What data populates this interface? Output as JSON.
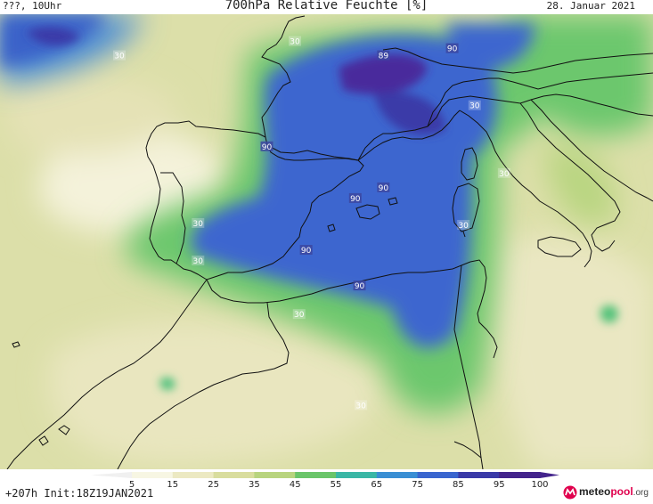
{
  "header": {
    "left": "???, 10Uhr",
    "title": "700hPa Relative Feuchte [%]",
    "date": "28. Januar 2021"
  },
  "map": {
    "variable": "relative humidity 700hPa",
    "contour_labels": [
      {
        "text": "30",
        "lon": -12.5,
        "lat": 46.2
      },
      {
        "text": "30",
        "lon": 0.0,
        "lat": 47.0
      },
      {
        "text": "89",
        "lon": 6.3,
        "lat": 46.2
      },
      {
        "text": "90",
        "lon": 11.2,
        "lat": 46.6
      },
      {
        "text": "30",
        "lon": 12.8,
        "lat": 43.4
      },
      {
        "text": "90",
        "lon": -2.0,
        "lat": 41.1
      },
      {
        "text": "30",
        "lon": 14.9,
        "lat": 39.6
      },
      {
        "text": "90",
        "lon": 6.3,
        "lat": 38.8
      },
      {
        "text": "90",
        "lon": 4.3,
        "lat": 38.2
      },
      {
        "text": "30",
        "lon": -6.9,
        "lat": 36.8
      },
      {
        "text": "30",
        "lon": 12.0,
        "lat": 36.7
      },
      {
        "text": "90",
        "lon": 0.8,
        "lat": 35.3
      },
      {
        "text": "30",
        "lon": -6.9,
        "lat": 34.7
      },
      {
        "text": "90",
        "lon": 4.6,
        "lat": 33.3
      },
      {
        "text": "30",
        "lon": 0.3,
        "lat": 31.7
      },
      {
        "text": "30",
        "lon": 4.7,
        "lat": 26.6
      }
    ],
    "colors": {
      "land_outline": "#111111",
      "dry": "#f6f4dc",
      "moist": "#3c66cf",
      "saturated": "#4a2b9c"
    }
  },
  "colorbar": {
    "labels": [
      "5",
      "15",
      "25",
      "35",
      "45",
      "55",
      "65",
      "75",
      "85",
      "95",
      "100"
    ],
    "colors": [
      "#ffffff",
      "#f7f6e3",
      "#ece9c2",
      "#d9dd9e",
      "#b8d47f",
      "#6ac56a",
      "#3ab7a6",
      "#3a8fd4",
      "#3a66cf",
      "#3a3aa8",
      "#43248c"
    ]
  },
  "footer": {
    "init": "+207h  Init:18Z19JAN2021",
    "brand_pre": "meteo",
    "brand_mid": "pool",
    "brand_tld": ".org"
  }
}
